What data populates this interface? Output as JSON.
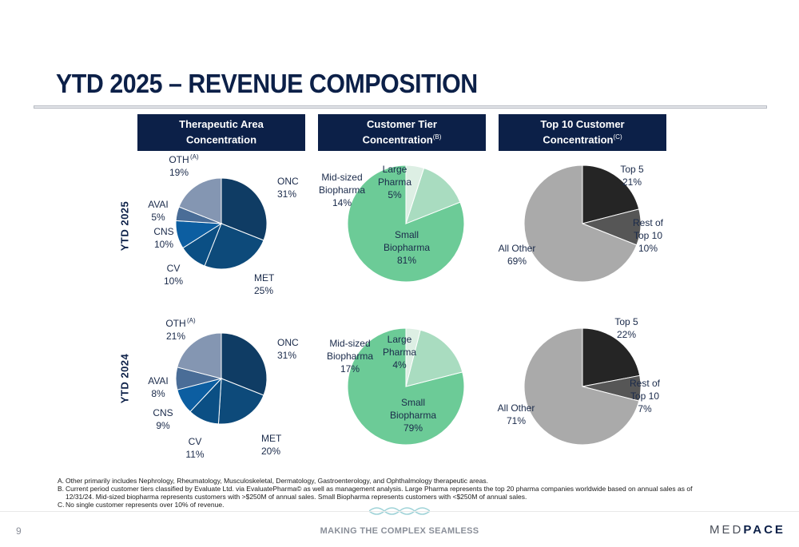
{
  "title": "YTD 2025 – REVENUE COMPOSITION",
  "colors": {
    "navy": "#0c2048",
    "therapeutic": [
      "#0f3c64",
      "#0d4a7a",
      "#0b4f84",
      "#0c5ea1",
      "#4a6d97",
      "#8496b2"
    ],
    "tier": [
      "#6ccb97",
      "#a9dcc0",
      "#ddefe4"
    ],
    "top10": [
      "#252525",
      "#565656",
      "#aaaaaa"
    ]
  },
  "headers": [
    {
      "line1": "Therapeutic Area",
      "line2": "Concentration",
      "sup": ""
    },
    {
      "line1": "Customer Tier",
      "line2": "Concentration",
      "sup": "(B)"
    },
    {
      "line1": "Top 10 Customer",
      "line2": "Concentration",
      "sup": "(C)"
    }
  ],
  "row_labels": [
    "YTD 2025",
    "YTD 2024"
  ],
  "chart_data": [
    {
      "type": "pie",
      "group": "Therapeutic Area Concentration",
      "period": "YTD 2025",
      "labels": [
        "ONC",
        "MET",
        "CV",
        "CNS",
        "AVAI",
        "OTH"
      ],
      "label_sups": [
        "",
        "",
        "",
        "",
        "",
        "(A)"
      ],
      "values": [
        31,
        25,
        10,
        10,
        5,
        19
      ],
      "value_labels": [
        "31%",
        "25%",
        "10%",
        "10%",
        "5%",
        "19%"
      ]
    },
    {
      "type": "pie",
      "group": "Customer Tier Concentration",
      "period": "YTD 2025",
      "labels": [
        "Small Biopharma",
        "Mid-sized Biopharma",
        "Large Pharma"
      ],
      "values": [
        81,
        14,
        5
      ],
      "value_labels": [
        "81%",
        "14%",
        "5%"
      ]
    },
    {
      "type": "pie",
      "group": "Top 10 Customer Concentration",
      "period": "YTD 2025",
      "labels": [
        "Top 5",
        "Rest of Top 10",
        "All Other"
      ],
      "values": [
        21,
        10,
        69
      ],
      "value_labels": [
        "21%",
        "10%",
        "69%"
      ]
    },
    {
      "type": "pie",
      "group": "Therapeutic Area Concentration",
      "period": "YTD 2024",
      "labels": [
        "ONC",
        "MET",
        "CV",
        "CNS",
        "AVAI",
        "OTH"
      ],
      "label_sups": [
        "",
        "",
        "",
        "",
        "",
        "(A)"
      ],
      "values": [
        31,
        20,
        11,
        9,
        8,
        21
      ],
      "value_labels": [
        "31%",
        "20%",
        "11%",
        "9%",
        "8%",
        "21%"
      ]
    },
    {
      "type": "pie",
      "group": "Customer Tier Concentration",
      "period": "YTD 2024",
      "labels": [
        "Small Biopharma",
        "Mid-sized Biopharma",
        "Large Pharma"
      ],
      "values": [
        79,
        17,
        4
      ],
      "value_labels": [
        "79%",
        "17%",
        "4%"
      ]
    },
    {
      "type": "pie",
      "group": "Top 10 Customer Concentration",
      "period": "YTD 2024",
      "labels": [
        "Top 5",
        "Rest of Top 10",
        "All Other"
      ],
      "values": [
        22,
        7,
        71
      ],
      "value_labels": [
        "22%",
        "7%",
        "71%"
      ]
    }
  ],
  "footnotes": [
    {
      "key": "A.",
      "text": "Other primarily includes Nephrology, Rheumatology, Musculoskeletal, Dermatology, Gastroenterology, and Ophthalmology therapeutic areas."
    },
    {
      "key": "B.",
      "text": "Current period customer tiers classified by Evaluate Ltd. via EvaluatePharma© as well as management analysis. Large Pharma represents the top 20 pharma companies worldwide based on annual sales as of 12/31/24. Mid-sized biopharma represents customers with >$250M of annual sales. Small Biopharma represents customers with <$250M of annual sales."
    },
    {
      "key": "C.",
      "text": "No single customer represents over 10% of revenue."
    }
  ],
  "footer": {
    "page_number": "9",
    "tagline": "MAKING THE COMPLEX SEAMLESS",
    "logo_left": "MED",
    "logo_right": "PACE"
  }
}
